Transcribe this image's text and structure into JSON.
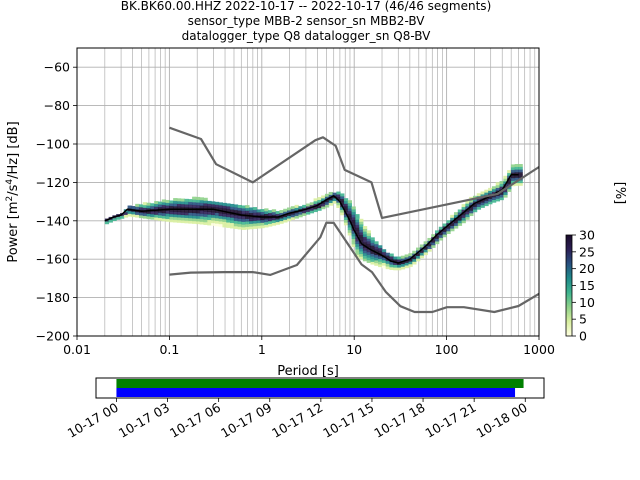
{
  "chart_data": [
    {
      "type": "heatmap",
      "title_lines": [
        "BK.BK60.00.HHZ   2022-10-17 -- 2022-10-17  (46/46 segments)",
        "sensor_type MBB-2 sensor_sn MBB2-BV",
        "datalogger_type Q8 datalogger_sn Q8-BV"
      ],
      "xlabel": "Period [s]",
      "ylabel": "Power [m²/s⁴/Hz] [dB]",
      "xscale": "log",
      "xlim": [
        0.01,
        1000
      ],
      "ylim": [
        -200,
        -50
      ],
      "x_ticks": [
        0.01,
        0.1,
        1,
        10,
        100,
        1000
      ],
      "x_tick_labels": [
        "0.01",
        "0.1",
        "1",
        "10",
        "100",
        "1000"
      ],
      "y_ticks": [
        -60,
        -80,
        -100,
        -120,
        -140,
        -160,
        -180,
        -200
      ],
      "y_tick_labels": [
        "−60",
        "−80",
        "−100",
        "−120",
        "−140",
        "−160",
        "−180",
        "−200"
      ],
      "grid": true,
      "series": [
        {
          "name": "",
          "role": "mean-psd",
          "color": "#000000",
          "period": [
            0.02,
            0.025,
            0.03,
            0.035,
            0.05,
            0.1,
            0.2,
            0.3,
            0.6,
            1,
            1.5,
            2,
            3,
            4,
            5,
            6,
            7,
            9,
            10,
            12,
            15,
            20,
            25,
            30,
            40,
            60,
            80,
            100,
            150,
            200,
            300,
            400,
            500,
            600
          ],
          "power": [
            -140,
            -138,
            -137,
            -134,
            -135,
            -134,
            -134,
            -134,
            -137,
            -138,
            -138,
            -136,
            -134,
            -132,
            -129,
            -127,
            -130,
            -140,
            -145,
            -152,
            -155,
            -158,
            -161,
            -162,
            -160,
            -153,
            -147,
            -143,
            -136,
            -131,
            -127,
            -124,
            -116,
            -116
          ]
        },
        {
          "name": "",
          "role": "new-high-noise-model",
          "color": "#666666",
          "period": [
            0.1,
            0.22,
            0.32,
            0.8,
            3.8,
            4.6,
            6.3,
            7.9,
            15.4,
            20,
            354.8,
            1000
          ],
          "power": [
            -91.5,
            -97.4,
            -110.5,
            -120,
            -98,
            -96.5,
            -101,
            -113.5,
            -120,
            -138.5,
            -126,
            -112
          ]
        },
        {
          "name": "",
          "role": "new-low-noise-model",
          "color": "#666666",
          "period": [
            0.1,
            0.17,
            0.4,
            0.8,
            1.24,
            2.4,
            4.3,
            5,
            6,
            10,
            12,
            15.6,
            21.9,
            31.6,
            45,
            70,
            101,
            154,
            328,
            600,
            1000
          ],
          "power": [
            -168,
            -167,
            -166.7,
            -166.7,
            -168.2,
            -163,
            -148.6,
            -141,
            -141.1,
            -157,
            -162.7,
            -166.7,
            -177,
            -184.5,
            -187.5,
            -187.5,
            -185,
            -185,
            -187.5,
            -184.4,
            -178
          ]
        }
      ],
      "colorbar": {
        "label": "[%]",
        "range": [
          0,
          30
        ],
        "ticks": [
          0,
          5,
          10,
          15,
          20,
          25,
          30
        ],
        "tick_labels": [
          "0",
          "5",
          "10",
          "15",
          "20",
          "25",
          "30"
        ],
        "colormap": [
          "#ffffe0",
          "#d9efa0",
          "#8fd18a",
          "#3fb48f",
          "#1f8a8a",
          "#28507f",
          "#2b1f55",
          "#1a0b2a"
        ]
      },
      "probability_band": {
        "period": [
          0.02,
          0.025,
          0.03,
          0.035,
          0.05,
          0.1,
          0.2,
          0.3,
          0.6,
          1,
          1.5,
          2,
          3,
          4,
          5,
          6,
          7,
          9,
          10,
          12,
          15,
          20,
          25,
          30,
          40,
          60,
          80,
          100,
          150,
          200,
          300,
          400,
          500,
          600
        ],
        "upper": [
          -139,
          -137,
          -136,
          -132,
          -131,
          -129,
          -128,
          -130,
          -132,
          -134,
          -135,
          -133,
          -131,
          -128,
          -126,
          -125,
          -126,
          -131,
          -135,
          -142,
          -148,
          -155,
          -158,
          -159,
          -157,
          -150,
          -143,
          -139,
          -131,
          -126,
          -122,
          -118,
          -111,
          -111
        ],
        "lower": [
          -141,
          -139,
          -138,
          -137,
          -138,
          -140,
          -141,
          -142,
          -144,
          -143,
          -141,
          -139,
          -136,
          -134,
          -132,
          -130,
          -136,
          -150,
          -158,
          -160,
          -162,
          -164,
          -165,
          -165,
          -163,
          -156,
          -150,
          -146,
          -140,
          -134,
          -130,
          -128,
          -121,
          -121
        ]
      }
    },
    {
      "type": "timeline",
      "x_ticks": [
        "10-17 00",
        "10-17 03",
        "10-17 06",
        "10-17 09",
        "10-17 12",
        "10-17 15",
        "10-17 18",
        "10-17 21",
        "10-18 00"
      ],
      "xlim_hours": [
        -1.2,
        25.1
      ],
      "bars": [
        {
          "color": "#008000",
          "start_hours": 0,
          "end_hours": 23.9
        },
        {
          "color": "#0000ff",
          "start_hours": 0,
          "end_hours": 23.4
        }
      ]
    }
  ]
}
